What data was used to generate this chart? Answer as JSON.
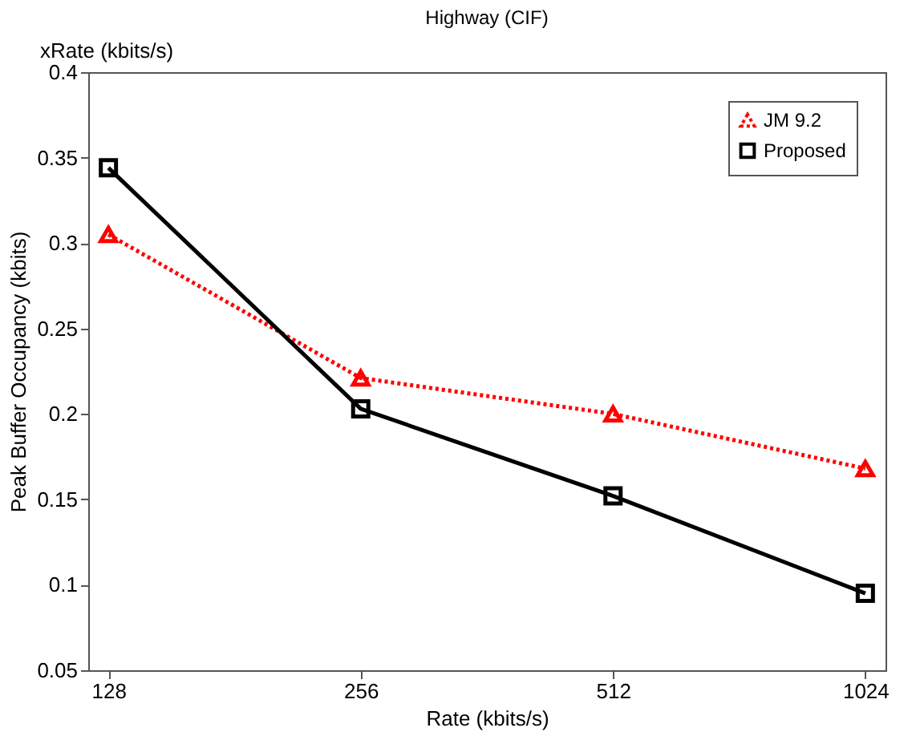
{
  "chart_data": {
    "type": "line",
    "title": "Highway (CIF)",
    "xlabel": "Rate (kbits/s)",
    "ylabel": "Peak Buffer Occupancy (kbits)",
    "annotations": [
      "xRate (kbits/s)"
    ],
    "categories": [
      "128",
      "256",
      "512",
      "1024"
    ],
    "series": [
      {
        "name": "JM 9.2",
        "color": "#ff0000",
        "marker": "triangle",
        "line_style": "dotted",
        "values": [
          0.305,
          0.221,
          0.2,
          0.168
        ]
      },
      {
        "name": "Proposed",
        "color": "#000000",
        "marker": "square",
        "line_style": "solid",
        "values": [
          0.344,
          0.203,
          0.152,
          0.095
        ]
      }
    ],
    "ylim": [
      0.05,
      0.4
    ],
    "yticks": [
      0.05,
      0.1,
      0.15,
      0.2,
      0.25,
      0.3,
      0.35,
      0.4
    ],
    "grid": false,
    "legend": "top right"
  }
}
